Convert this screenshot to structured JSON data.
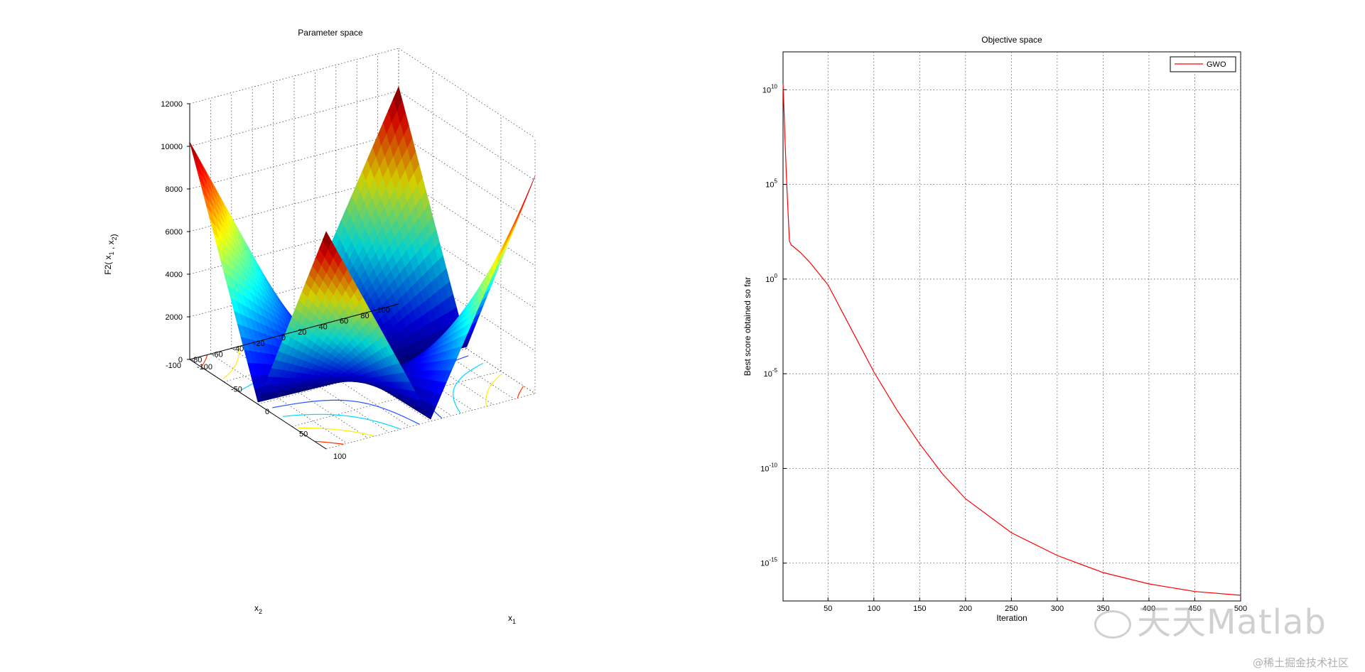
{
  "chart_data": [
    {
      "type": "surface",
      "title": "Parameter space",
      "xlabel": "x",
      "xlabel_sub": "1",
      "ylabel": "x",
      "ylabel_sub": "2",
      "zlabel": "F2( x",
      "zlabel_sub1": "1",
      "zlabel_mid": " , x",
      "zlabel_sub2": "2",
      "zlabel_end": ")",
      "function": "abs(x1)+abs(x2)+abs(x1)*abs(x2)",
      "x1_range": [
        -100,
        100
      ],
      "x2_range": [
        -100,
        100
      ],
      "zlim": [
        0,
        12000
      ],
      "x1_ticks": [
        "-100",
        "-50",
        "0",
        "50",
        "100"
      ],
      "x2_ticks": [
        "-100",
        "-80",
        "-60",
        "-40",
        "-20",
        "0",
        "20",
        "40",
        "60",
        "80",
        "100"
      ],
      "z_ticks": [
        "0",
        "2000",
        "4000",
        "6000",
        "8000",
        "10000",
        "12000"
      ],
      "colormap": "jet",
      "grid": true
    },
    {
      "type": "line",
      "title": "Objective space",
      "xlabel": "Iteration",
      "ylabel": "Best score obtained so far",
      "yscale": "log",
      "xlim": [
        1,
        500
      ],
      "ylim": [
        1e-17,
        1000000000000.0
      ],
      "x_ticks": [
        "50",
        "100",
        "150",
        "200",
        "250",
        "300",
        "350",
        "400",
        "450",
        "500"
      ],
      "y_ticks": [
        {
          "base": "10",
          "exp": "10"
        },
        {
          "base": "10",
          "exp": "5"
        },
        {
          "base": "10",
          "exp": "0"
        },
        {
          "base": "10",
          "exp": "-5"
        },
        {
          "base": "10",
          "exp": "-10"
        },
        {
          "base": "10",
          "exp": "-15"
        }
      ],
      "grid": true,
      "legend_position": "top-right",
      "series": [
        {
          "name": "GWO",
          "color": "#ff0000",
          "x": [
            1,
            2,
            3,
            5,
            8,
            10,
            20,
            30,
            50,
            75,
            100,
            125,
            150,
            175,
            200,
            250,
            300,
            350,
            400,
            450,
            500
          ],
          "log10_y": [
            10.3,
            9.0,
            7.5,
            5.0,
            2.0,
            1.8,
            1.4,
            0.9,
            -0.3,
            -2.6,
            -4.9,
            -6.9,
            -8.7,
            -10.3,
            -11.6,
            -13.4,
            -14.6,
            -15.5,
            -16.1,
            -16.5,
            -16.7
          ]
        }
      ]
    }
  ],
  "watermark": {
    "brand": "天天Matlab",
    "credit": "@稀土掘金技术社区"
  }
}
